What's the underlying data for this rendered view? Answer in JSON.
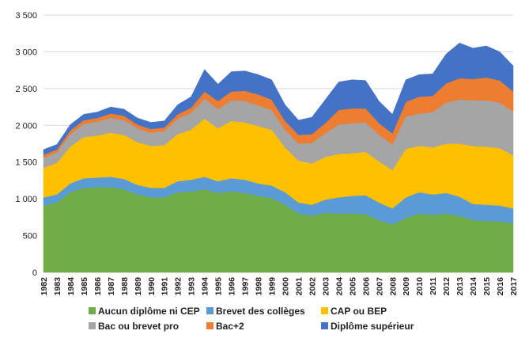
{
  "chart_data": {
    "type": "area",
    "stacked": true,
    "title": "",
    "xlabel": "",
    "ylabel": "",
    "ylim": [
      0,
      3500
    ],
    "yticks": [
      0,
      500,
      1000,
      1500,
      2000,
      2500,
      3000,
      3500
    ],
    "ytick_labels": [
      "0",
      "500",
      "1 000",
      "1 500",
      "2 000",
      "2 500",
      "3 000",
      "3 500"
    ],
    "grid": "horizontal",
    "legend_position": "bottom",
    "x": [
      "1982",
      "1983",
      "1984",
      "1985",
      "1986",
      "1987",
      "1988",
      "1989",
      "1990",
      "1991",
      "1992",
      "1993",
      "1994",
      "1995",
      "1996",
      "1997",
      "1998",
      "1999",
      "2000",
      "2001",
      "2002",
      "2003",
      "2004",
      "2005",
      "2006",
      "2007",
      "2008",
      "2009",
      "2010",
      "2011",
      "2012",
      "2013",
      "2014",
      "2015",
      "2016",
      "2017"
    ],
    "series": [
      {
        "name": "Aucun diplôme ni CEP",
        "color": "#70ad47",
        "values": [
          910,
          950,
          1090,
          1150,
          1160,
          1160,
          1130,
          1060,
          1020,
          1020,
          1090,
          1100,
          1130,
          1080,
          1100,
          1080,
          1040,
          1010,
          920,
          800,
          770,
          810,
          800,
          800,
          790,
          710,
          650,
          740,
          800,
          780,
          800,
          770,
          710,
          700,
          690,
          670
        ]
      },
      {
        "name": "Brevet des collèges",
        "color": "#5b9bd5",
        "values": [
          110,
          110,
          120,
          130,
          130,
          140,
          140,
          130,
          130,
          130,
          150,
          160,
          170,
          160,
          180,
          180,
          170,
          170,
          170,
          150,
          150,
          180,
          220,
          240,
          260,
          240,
          220,
          280,
          290,
          280,
          280,
          260,
          220,
          220,
          220,
          200
        ]
      },
      {
        "name": "CAP ou BEP",
        "color": "#ffc000",
        "values": [
          400,
          430,
          500,
          560,
          570,
          600,
          600,
          580,
          570,
          580,
          640,
          680,
          790,
          720,
          780,
          780,
          780,
          760,
          610,
          570,
          560,
          580,
          590,
          580,
          590,
          560,
          520,
          660,
          630,
          640,
          670,
          720,
          790,
          790,
          780,
          720
        ]
      },
      {
        "name": "Bac ou brevet pro",
        "color": "#a5a5a5",
        "values": [
          140,
          140,
          170,
          180,
          190,
          200,
          200,
          190,
          180,
          190,
          210,
          230,
          270,
          260,
          280,
          290,
          280,
          270,
          240,
          230,
          280,
          320,
          400,
          410,
          400,
          360,
          350,
          440,
          440,
          480,
          560,
          600,
          620,
          630,
          620,
          600
        ]
      },
      {
        "name": "Bac+2",
        "color": "#ed7d31",
        "values": [
          40,
          40,
          50,
          50,
          50,
          60,
          60,
          50,
          50,
          50,
          60,
          70,
          100,
          110,
          120,
          140,
          150,
          140,
          120,
          120,
          120,
          140,
          200,
          200,
          190,
          160,
          150,
          200,
          230,
          220,
          260,
          290,
          290,
          310,
          300,
          270
        ]
      },
      {
        "name": "Diplôme supérieur",
        "color": "#4472c4",
        "values": [
          70,
          70,
          80,
          80,
          80,
          90,
          90,
          90,
          90,
          90,
          130,
          150,
          300,
          230,
          270,
          270,
          270,
          270,
          220,
          200,
          230,
          320,
          380,
          390,
          380,
          300,
          260,
          300,
          300,
          300,
          400,
          480,
          420,
          430,
          390,
          350
        ]
      }
    ]
  }
}
